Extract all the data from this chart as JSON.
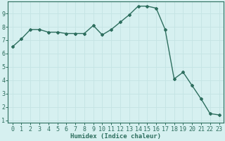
{
  "x": [
    0,
    1,
    2,
    3,
    4,
    5,
    6,
    7,
    8,
    9,
    10,
    11,
    12,
    13,
    14,
    15,
    16,
    17,
    18,
    19,
    20,
    21,
    22,
    23
  ],
  "y": [
    6.5,
    7.1,
    7.8,
    7.8,
    7.6,
    7.6,
    7.5,
    7.5,
    7.5,
    8.1,
    7.4,
    7.8,
    8.35,
    8.9,
    9.55,
    9.55,
    9.4,
    7.8,
    4.1,
    4.6,
    3.6,
    2.6,
    1.5,
    1.4
  ],
  "xlabel": "Humidex (Indice chaleur)",
  "xlim_min": -0.5,
  "xlim_max": 23.5,
  "ylim_min": 0.8,
  "ylim_max": 9.9,
  "yticks": [
    1,
    2,
    3,
    4,
    5,
    6,
    7,
    8,
    9
  ],
  "xticks": [
    0,
    1,
    2,
    3,
    4,
    5,
    6,
    7,
    8,
    9,
    10,
    11,
    12,
    13,
    14,
    15,
    16,
    17,
    18,
    19,
    20,
    21,
    22,
    23
  ],
  "line_color": "#2d6e5e",
  "marker": "D",
  "marker_size": 2.0,
  "bg_color": "#d6f0f0",
  "grid_color": "#c4e4e4",
  "axis_color": "#2d6e5e",
  "label_color": "#2d6e5e",
  "xlabel_fontsize": 6.5,
  "tick_fontsize": 6.0,
  "line_width": 1.0
}
